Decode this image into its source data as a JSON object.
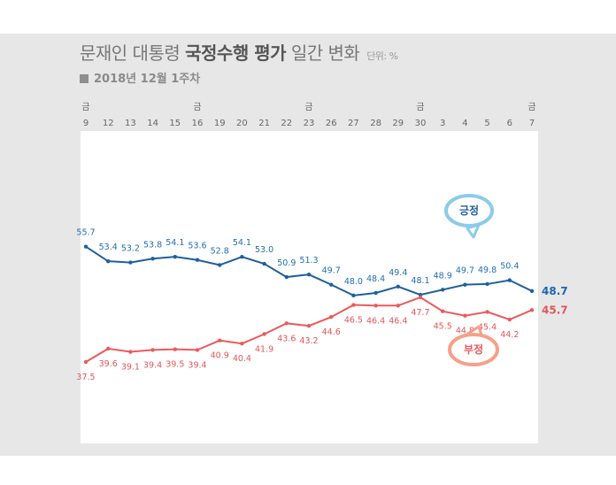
{
  "header": {
    "title_prefix": "문재인 대통령",
    "title_bold": "국정수행 평가",
    "title_suffix": "일간 변화",
    "unit": "단위: %",
    "subtitle": "2018년 12월 1주차"
  },
  "colors": {
    "positive": "#1f5f9e",
    "negative": "#ea5a5d",
    "positive_bubble": "#8ccbea",
    "negative_bubble": "#f7a08a"
  },
  "chart_data": {
    "type": "line",
    "x": [
      "9",
      "12",
      "13",
      "14",
      "15",
      "16",
      "19",
      "20",
      "21",
      "22",
      "23",
      "26",
      "27",
      "28",
      "29",
      "30",
      "3",
      "4",
      "5",
      "6",
      "7"
    ],
    "weekday_markers": [
      {
        "x": "9",
        "label": "금"
      },
      {
        "x": "16",
        "label": "금"
      },
      {
        "x": "23",
        "label": "금"
      },
      {
        "x": "30",
        "label": "금"
      },
      {
        "x": "7",
        "label": "금"
      }
    ],
    "series": [
      {
        "name": "긍정",
        "values": [
          55.7,
          53.4,
          53.2,
          53.8,
          54.1,
          53.6,
          52.8,
          54.1,
          53.0,
          50.9,
          51.3,
          49.7,
          48.0,
          48.4,
          49.4,
          48.1,
          48.9,
          49.7,
          49.8,
          50.4,
          48.7
        ]
      },
      {
        "name": "부정",
        "values": [
          37.5,
          39.6,
          39.1,
          39.4,
          39.5,
          39.4,
          40.9,
          40.4,
          41.9,
          43.6,
          43.2,
          44.6,
          46.5,
          46.4,
          46.4,
          47.7,
          45.5,
          44.8,
          45.4,
          44.2,
          45.7
        ]
      }
    ],
    "end_labels": [
      "48.7",
      "45.7"
    ]
  }
}
